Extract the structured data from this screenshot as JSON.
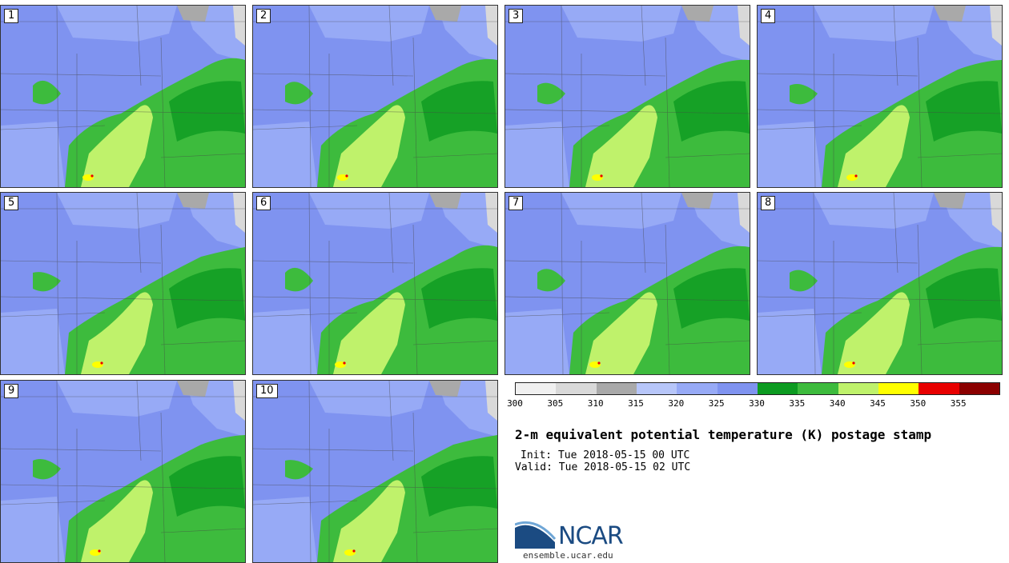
{
  "title": "2-m equivalent potential temperature (K) postage stamp",
  "init": "Init: Tue 2018-05-15 00 UTC",
  "valid": "Valid: Tue 2018-05-15 02 UTC",
  "logo": {
    "text": "NCAR",
    "site": "ensemble.ucar.edu"
  },
  "colorbar": {
    "ticks": [
      "300",
      "305",
      "310",
      "315",
      "320",
      "325",
      "330",
      "335",
      "340",
      "345",
      "350",
      "355"
    ],
    "colors": [
      "#f0f0f0",
      "#d9d9d9",
      "#a9a9a9",
      "#b7c6f9",
      "#97aaf6",
      "#7f93f0",
      "#0c9b21",
      "#3dbb3d",
      "#bff26b",
      "#ffff00",
      "#e80000",
      "#8b0000"
    ]
  },
  "members": [
    {
      "label": "1"
    },
    {
      "label": "2"
    },
    {
      "label": "3"
    },
    {
      "label": "4"
    },
    {
      "label": "5"
    },
    {
      "label": "6"
    },
    {
      "label": "7"
    },
    {
      "label": "8"
    },
    {
      "label": "9"
    },
    {
      "label": "10"
    }
  ]
}
